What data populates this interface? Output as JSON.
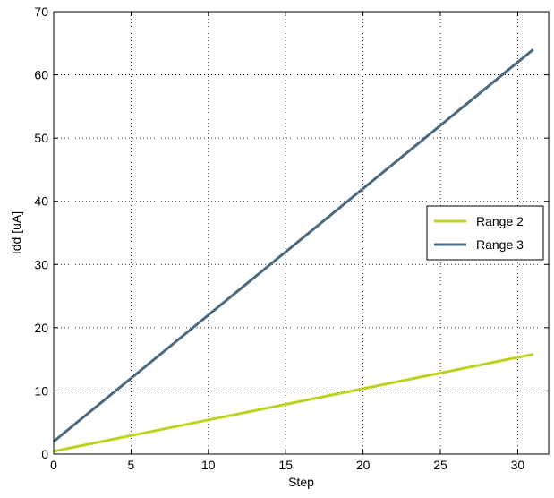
{
  "chart_data": {
    "type": "line",
    "xlabel": "Step",
    "ylabel": "Idd [uA]",
    "xlim": [
      0,
      32
    ],
    "ylim": [
      0,
      70
    ],
    "xticks": [
      0,
      5,
      10,
      15,
      20,
      25,
      30
    ],
    "yticks": [
      0,
      10,
      20,
      30,
      40,
      50,
      60,
      70
    ],
    "grid": true,
    "legend_position": "center-right",
    "series": [
      {
        "name": "Range 2",
        "color": "#bcd21c",
        "x": [
          0,
          31
        ],
        "y": [
          0.45,
          15.8
        ]
      },
      {
        "name": "Range 3",
        "color": "#496a80",
        "x": [
          0,
          31
        ],
        "y": [
          2.0,
          64.0
        ]
      }
    ]
  }
}
